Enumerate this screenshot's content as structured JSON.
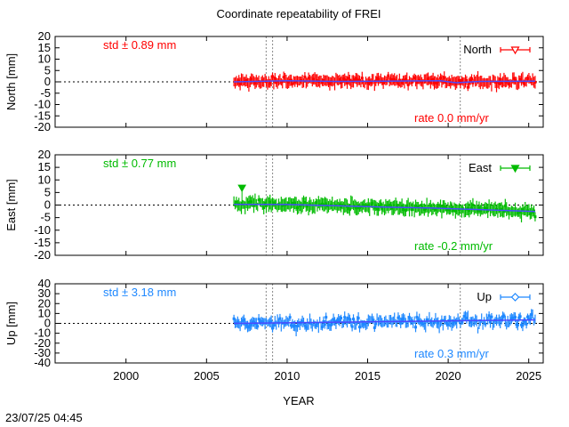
{
  "title": "Coordinate repeatability of FREI",
  "xlabel": "YEAR",
  "footer_timestamp": "23/07/25 04:45",
  "chart_data": {
    "type": "scatter",
    "title": "Coordinate repeatability of FREI",
    "xlabel": "YEAR",
    "xlim": [
      1995.6,
      2025.9
    ],
    "x_ticks": [
      2000,
      2005,
      2010,
      2015,
      2020,
      2025
    ],
    "data_range": [
      2006.7,
      2025.4
    ],
    "event_lines": [
      2008.7,
      2009.1,
      2020.75
    ],
    "reference_y": 0,
    "panels": [
      {
        "key": "north",
        "ylabel": "North [mm]",
        "series_name": "North",
        "color": "#ff0000",
        "marker": "open-triangle-down",
        "std_label": "std ± 0.89 mm",
        "rate_label": "rate  0.0 mm/yr",
        "ylim": [
          -20,
          20
        ],
        "y_ticks": [
          20,
          15,
          10,
          5,
          0,
          -5,
          -10,
          -15,
          -20
        ],
        "std_mm": 0.89,
        "rate_mm_per_yr": 0.0,
        "trend_points": [
          [
            2006.7,
            0.0
          ],
          [
            2010,
            0.5
          ],
          [
            2013,
            0.2
          ],
          [
            2016,
            0.3
          ],
          [
            2019.5,
            0.5
          ],
          [
            2020.5,
            -0.4
          ],
          [
            2022,
            0.2
          ],
          [
            2025.4,
            0.3
          ]
        ]
      },
      {
        "key": "east",
        "ylabel": "East [mm]",
        "series_name": "East",
        "color": "#00bb00",
        "marker": "filled-triangle-down",
        "std_label": "std ± 0.77 mm",
        "rate_label": "rate -0.2 mm/yr",
        "ylim": [
          -20,
          20
        ],
        "y_ticks": [
          20,
          15,
          10,
          5,
          0,
          -5,
          -10,
          -15,
          -20
        ],
        "std_mm": 0.77,
        "rate_mm_per_yr": -0.2,
        "trend_points": [
          [
            2006.7,
            0.3
          ],
          [
            2010,
            0.2
          ],
          [
            2013,
            -0.3
          ],
          [
            2016,
            -0.8
          ],
          [
            2019,
            -1.2
          ],
          [
            2022,
            -1.8
          ],
          [
            2025.4,
            -2.6
          ]
        ]
      },
      {
        "key": "up",
        "ylabel": "Up [mm]",
        "series_name": "Up",
        "color": "#1e88ff",
        "marker": "open-diamond",
        "std_label": "std ± 3.18 mm",
        "rate_label": "rate  0.3 mm/yr",
        "ylim": [
          -40,
          40
        ],
        "y_ticks": [
          40,
          30,
          20,
          10,
          0,
          -10,
          -20,
          -30,
          -40
        ],
        "std_mm": 3.18,
        "rate_mm_per_yr": 0.3,
        "trend_points": [
          [
            2006.7,
            0.0
          ],
          [
            2010,
            0.5
          ],
          [
            2015,
            1.5
          ],
          [
            2020,
            2.5
          ],
          [
            2025.4,
            3.5
          ]
        ]
      }
    ]
  }
}
